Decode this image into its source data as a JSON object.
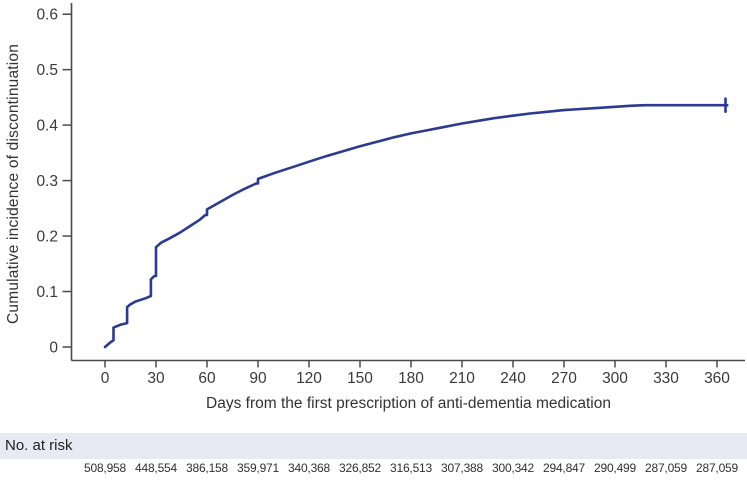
{
  "chart_data": {
    "type": "line",
    "title": "",
    "xlabel": "Days from the first prescription of anti-dementia medication",
    "ylabel": "Cumulative incidence of discontinuation",
    "xlim": [
      0,
      372
    ],
    "ylim": [
      0,
      0.6
    ],
    "x_ticks": [
      0,
      30,
      60,
      90,
      120,
      150,
      180,
      210,
      240,
      270,
      300,
      330,
      360
    ],
    "x_tick_labels": [
      "0",
      "30",
      "60",
      "90",
      "120",
      "150",
      "180",
      "210",
      "240",
      "270",
      "300",
      "330",
      "360"
    ],
    "y_ticks": [
      0,
      0.1,
      0.2,
      0.3,
      0.4,
      0.5,
      0.6
    ],
    "y_tick_labels": [
      "0",
      "0.1",
      "0.2",
      "0.3",
      "0.4",
      "0.5",
      "0.6"
    ],
    "grid": false,
    "legend": false,
    "line_color": "#2b3a92",
    "axis_color": "#4a4a4a",
    "series": [
      {
        "name": "Cumulative incidence of discontinuation",
        "step": true,
        "points": [
          [
            0,
            0
          ],
          [
            3,
            0.008
          ],
          [
            5,
            0.012
          ],
          [
            5,
            0.035
          ],
          [
            9,
            0.04
          ],
          [
            13,
            0.043
          ],
          [
            13,
            0.072
          ],
          [
            15,
            0.077
          ],
          [
            18,
            0.082
          ],
          [
            24,
            0.088
          ],
          [
            27,
            0.092
          ],
          [
            27,
            0.122
          ],
          [
            29,
            0.128
          ],
          [
            30,
            0.128
          ],
          [
            30,
            0.18
          ],
          [
            33,
            0.188
          ],
          [
            38,
            0.196
          ],
          [
            44,
            0.206
          ],
          [
            50,
            0.218
          ],
          [
            56,
            0.23
          ],
          [
            59,
            0.238
          ],
          [
            60,
            0.238
          ],
          [
            60,
            0.248
          ],
          [
            68,
            0.262
          ],
          [
            75,
            0.274
          ],
          [
            82,
            0.285
          ],
          [
            89,
            0.295
          ],
          [
            90,
            0.295
          ],
          [
            90,
            0.303
          ],
          [
            100,
            0.314
          ],
          [
            110,
            0.324
          ],
          [
            120,
            0.334
          ],
          [
            130,
            0.344
          ],
          [
            140,
            0.353
          ],
          [
            150,
            0.362
          ],
          [
            160,
            0.37
          ],
          [
            170,
            0.378
          ],
          [
            180,
            0.385
          ],
          [
            190,
            0.391
          ],
          [
            200,
            0.397
          ],
          [
            210,
            0.403
          ],
          [
            220,
            0.408
          ],
          [
            230,
            0.413
          ],
          [
            240,
            0.417
          ],
          [
            250,
            0.421
          ],
          [
            260,
            0.424
          ],
          [
            270,
            0.427
          ],
          [
            280,
            0.429
          ],
          [
            290,
            0.431
          ],
          [
            300,
            0.433
          ],
          [
            310,
            0.435
          ],
          [
            318,
            0.436
          ],
          [
            366,
            0.436
          ]
        ],
        "censor_marks": [
          [
            365,
            0.436
          ]
        ]
      }
    ]
  },
  "risk_table": {
    "label": "No. at risk",
    "times": [
      0,
      30,
      60,
      90,
      120,
      150,
      180,
      210,
      240,
      270,
      300,
      330,
      360
    ],
    "counts": [
      "508,958",
      "448,554",
      "386,158",
      "359,971",
      "340,368",
      "326,852",
      "316,513",
      "307,388",
      "300,342",
      "294,847",
      "290,499",
      "287,059",
      "287,059"
    ]
  },
  "colors": {
    "curve": "#2b3a92",
    "axis": "#4a4a4a",
    "text": "#3a3a3a",
    "risk_strip_bg": "#e9e9f3"
  }
}
